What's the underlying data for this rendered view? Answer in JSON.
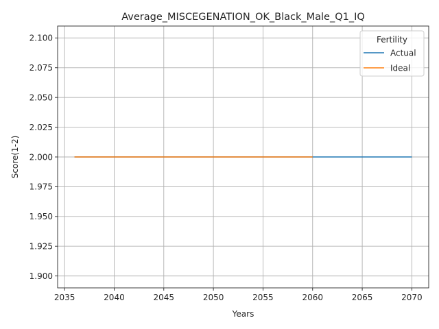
{
  "chart_data": {
    "type": "line",
    "title": "Average_MISCEGENATION_OK_Black_Male_Q1_IQ",
    "xlabel": "Years",
    "ylabel": "Score(1-2)",
    "xlim": [
      2034.3,
      2071.7
    ],
    "ylim": [
      1.89,
      2.11
    ],
    "xticks": [
      2035,
      2040,
      2045,
      2050,
      2055,
      2060,
      2065,
      2070
    ],
    "yticks": [
      1.9,
      1.925,
      1.95,
      1.975,
      2.0,
      2.025,
      2.05,
      2.075,
      2.1
    ],
    "ytick_labels": [
      "1.900",
      "1.925",
      "1.950",
      "1.975",
      "2.000",
      "2.025",
      "2.050",
      "2.075",
      "2.100"
    ],
    "grid": true,
    "legend": {
      "title": "Fertility",
      "placement": "top-right"
    },
    "series": [
      {
        "name": "Actual",
        "color": "#1f77b4",
        "x": [
          2036,
          2070
        ],
        "y": [
          2.0,
          2.0
        ]
      },
      {
        "name": "Ideal",
        "color": "#ff7f0e",
        "x": [
          2036,
          2060
        ],
        "y": [
          2.0,
          2.0
        ]
      }
    ]
  }
}
